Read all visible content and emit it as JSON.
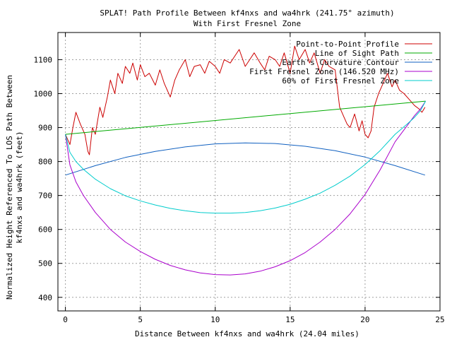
{
  "chart_data": {
    "type": "line",
    "title_lines": [
      "SPLAT! Path Profile Between kf4nxs and wa4hrk (241.75° azimuth)",
      "With First Fresnel Zone"
    ],
    "xlabel": "Distance Between kf4nxs and wa4hrk (24.04 miles)",
    "ylabel_lines": [
      "Normalized Height Referenced To LOS Path Between",
      "kf4nxs and wa4hrk (feet)"
    ],
    "xlim": [
      -0.5,
      25
    ],
    "ylim": [
      360,
      1180
    ],
    "x_ticks": [
      0,
      5,
      10,
      15,
      20,
      25
    ],
    "y_ticks": [
      400,
      500,
      600,
      700,
      800,
      900,
      1000,
      1100
    ],
    "grid": true,
    "legend_position": "top-right",
    "series": [
      {
        "name": "Point-to-Point Profile",
        "color": "#cc0000",
        "x": [
          0,
          0.3,
          0.5,
          0.7,
          1.0,
          1.3,
          1.5,
          1.6,
          1.8,
          2.0,
          2.3,
          2.5,
          2.8,
          3.0,
          3.3,
          3.5,
          3.8,
          4.0,
          4.3,
          4.5,
          4.8,
          5.0,
          5.3,
          5.6,
          6.0,
          6.3,
          6.6,
          7.0,
          7.3,
          7.6,
          8.0,
          8.3,
          8.6,
          9.0,
          9.3,
          9.6,
          10.0,
          10.3,
          10.6,
          11.0,
          11.3,
          11.6,
          12.0,
          12.3,
          12.6,
          13.0,
          13.3,
          13.6,
          14.0,
          14.3,
          14.6,
          15.0,
          15.3,
          15.6,
          16.0,
          16.3,
          16.6,
          17.0,
          17.3,
          17.6,
          18.0,
          18.3,
          18.6,
          18.8,
          19.0,
          19.3,
          19.6,
          19.8,
          20.0,
          20.2,
          20.4,
          20.6,
          20.9,
          21.2,
          21.5,
          21.8,
          22.0,
          22.3,
          22.6,
          23.0,
          23.3,
          23.6,
          23.8,
          24.0
        ],
        "values": [
          880,
          850,
          900,
          945,
          910,
          880,
          830,
          820,
          900,
          880,
          960,
          930,
          990,
          1040,
          1000,
          1060,
          1030,
          1080,
          1060,
          1090,
          1040,
          1085,
          1050,
          1060,
          1025,
          1070,
          1030,
          990,
          1040,
          1070,
          1100,
          1050,
          1080,
          1085,
          1060,
          1095,
          1080,
          1060,
          1100,
          1090,
          1110,
          1130,
          1080,
          1100,
          1120,
          1090,
          1070,
          1110,
          1100,
          1080,
          1120,
          1060,
          1140,
          1100,
          1130,
          1090,
          1120,
          1060,
          1100,
          1080,
          1070,
          960,
          930,
          910,
          900,
          940,
          890,
          920,
          880,
          870,
          890,
          960,
          1000,
          1030,
          1060,
          1020,
          1040,
          1010,
          1000,
          980,
          965,
          955,
          945,
          960
        ]
      },
      {
        "name": "Line of Sight Path",
        "color": "#00aa00",
        "x": [
          0,
          24.04
        ],
        "values": [
          880,
          978
        ]
      },
      {
        "name": "Earth's Curvature Contour",
        "color": "#1060c0",
        "x": [
          0,
          2,
          4,
          6,
          8,
          10,
          12,
          14,
          16,
          18,
          20,
          22,
          24
        ],
        "values": [
          760,
          788,
          812,
          830,
          843,
          852,
          855,
          853,
          845,
          832,
          813,
          788,
          760
        ]
      },
      {
        "name": "First Fresnel Zone (146.520 MHz)",
        "color": "#aa00cc",
        "x": [
          0,
          0.3,
          0.7,
          1.2,
          2,
          3,
          4,
          5,
          6,
          7,
          8,
          9,
          10,
          11,
          12,
          13,
          14,
          15,
          16,
          17,
          18,
          19,
          20,
          21,
          22,
          22.8,
          23.3,
          23.7,
          24.04
        ],
        "values": [
          880,
          790,
          740,
          700,
          650,
          600,
          563,
          535,
          512,
          494,
          481,
          472,
          467,
          466,
          469,
          477,
          490,
          508,
          532,
          563,
          600,
          646,
          703,
          775,
          858,
          905,
          935,
          955,
          978
        ]
      },
      {
        "name": "60% of First Fresnel Zone",
        "color": "#00cccc",
        "x": [
          0,
          0.3,
          0.7,
          1.2,
          2,
          3,
          4,
          5,
          6,
          7,
          8,
          9,
          10,
          11,
          12,
          13,
          14,
          15,
          16,
          17,
          18,
          19,
          20,
          21,
          22,
          22.8,
          23.3,
          23.7,
          24.04
        ],
        "values": [
          880,
          827,
          800,
          777,
          748,
          720,
          699,
          684,
          672,
          662,
          655,
          650,
          648,
          648,
          650,
          655,
          663,
          674,
          689,
          707,
          730,
          757,
          791,
          832,
          880,
          910,
          930,
          950,
          978
        ]
      }
    ]
  }
}
